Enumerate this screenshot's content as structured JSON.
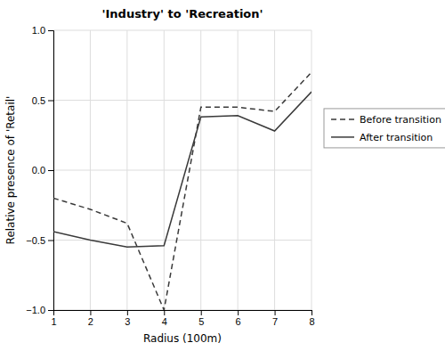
{
  "chart_data": {
    "type": "line",
    "title": "'Industry' to 'Recreation'",
    "xlabel": "Radius (100m)",
    "ylabel": "Relative presence of 'Retail'",
    "x": [
      1,
      2,
      3,
      4,
      5,
      6,
      7,
      8
    ],
    "series": [
      {
        "name": "Before transition",
        "color": "#3a3a3a",
        "line_style": "dashed",
        "values": [
          -0.2,
          -0.28,
          -0.38,
          -1.0,
          0.45,
          0.45,
          0.42,
          0.7
        ]
      },
      {
        "name": "After transition",
        "color": "#3a3a3a",
        "line_style": "solid",
        "values": [
          -0.44,
          -0.5,
          -0.55,
          -0.54,
          0.38,
          0.39,
          0.28,
          0.56
        ]
      }
    ],
    "xlim": [
      1,
      8
    ],
    "ylim": [
      -1.0,
      1.0
    ],
    "xticks": [
      1,
      2,
      3,
      4,
      5,
      6,
      7,
      8
    ],
    "yticks": [
      {
        "value": -1.0,
        "label": "−1.0"
      },
      {
        "value": -0.5,
        "label": "−0.5"
      },
      {
        "value": 0.0,
        "label": "0.0"
      },
      0.5,
      {
        "value": 1.0,
        "label": "1.0"
      }
    ],
    "grid": true,
    "legend": "right"
  }
}
